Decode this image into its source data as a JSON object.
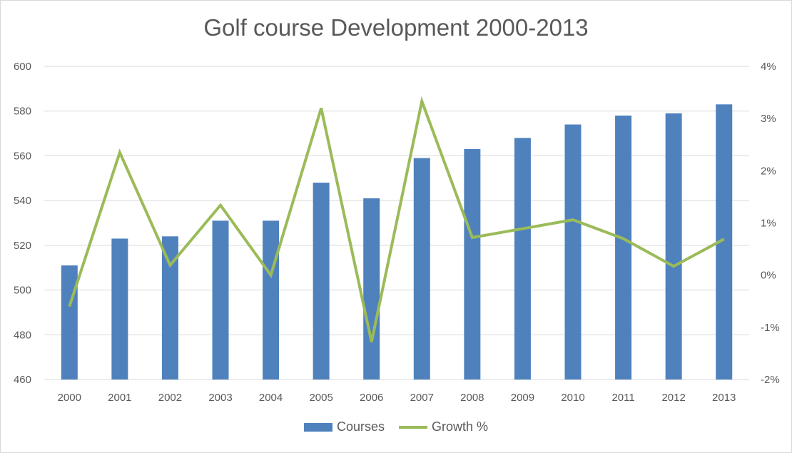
{
  "chart_data": {
    "type": "bar",
    "title": "Golf course Development 2000-2013",
    "categories": [
      "2000",
      "2001",
      "2002",
      "2003",
      "2004",
      "2005",
      "2006",
      "2007",
      "2008",
      "2009",
      "2010",
      "2011",
      "2012",
      "2013"
    ],
    "series": [
      {
        "name": "Courses",
        "type": "bar",
        "axis": "left",
        "color": "#4f81bd",
        "values": [
          511,
          523,
          524,
          531,
          531,
          548,
          541,
          559,
          563,
          568,
          574,
          578,
          579,
          583
        ]
      },
      {
        "name": "Growth %",
        "type": "line",
        "axis": "right",
        "color": "#9bbb59",
        "values": [
          -0.6,
          2.35,
          0.19,
          1.34,
          0.0,
          3.2,
          -1.28,
          3.33,
          0.72,
          0.89,
          1.06,
          0.7,
          0.17,
          0.69
        ]
      }
    ],
    "y_left": {
      "min": 460,
      "max": 600,
      "ticks": [
        460,
        480,
        500,
        520,
        540,
        560,
        580,
        600
      ]
    },
    "y_right": {
      "min": -2,
      "max": 4,
      "ticks": [
        "-2%",
        "-1%",
        "0%",
        "1%",
        "2%",
        "3%",
        "4%"
      ]
    },
    "grid": true,
    "legend_position": "bottom"
  }
}
